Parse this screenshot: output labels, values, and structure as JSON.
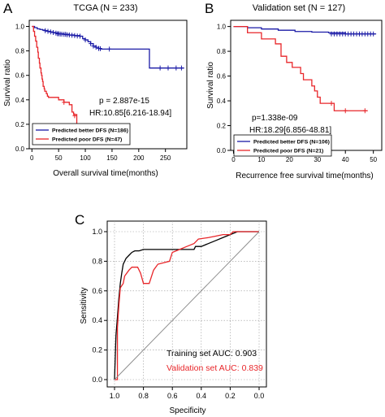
{
  "chart_data": [
    {
      "panel_label": "A",
      "type": "line",
      "title": "TCGA (N = 233)",
      "xlabel": "Overall survival time(months)",
      "ylabel": "Survival ratio",
      "xlim": [
        -5,
        290
      ],
      "ylim": [
        0,
        1.05
      ],
      "xticks": [
        0,
        50,
        100,
        150,
        200,
        250
      ],
      "yticks": [
        0.0,
        0.2,
        0.4,
        0.6,
        0.8,
        1.0
      ],
      "annotations": [
        "p = 2.887e-15",
        "HR:10.85[6.216-18.94]"
      ],
      "legend": {
        "position": "bottom-left"
      },
      "series": [
        {
          "name": "Predicted better DFS (N=186)",
          "color": "#1a1aa6",
          "steps": [
            [
              0,
              1.0
            ],
            [
              5,
              0.99
            ],
            [
              10,
              0.98
            ],
            [
              15,
              0.975
            ],
            [
              20,
              0.97
            ],
            [
              25,
              0.965
            ],
            [
              30,
              0.96
            ],
            [
              35,
              0.955
            ],
            [
              40,
              0.95
            ],
            [
              45,
              0.945
            ],
            [
              50,
              0.94
            ],
            [
              60,
              0.935
            ],
            [
              70,
              0.93
            ],
            [
              80,
              0.925
            ],
            [
              90,
              0.92
            ],
            [
              95,
              0.9
            ],
            [
              100,
              0.89
            ],
            [
              105,
              0.875
            ],
            [
              110,
              0.86
            ],
            [
              115,
              0.84
            ],
            [
              120,
              0.83
            ],
            [
              125,
              0.82
            ],
            [
              130,
              0.815
            ],
            [
              220,
              0.815
            ],
            [
              220,
              0.66
            ],
            [
              285,
              0.66
            ]
          ],
          "censors": [
            [
              25,
              0.965
            ],
            [
              30,
              0.96
            ],
            [
              35,
              0.955
            ],
            [
              40,
              0.95
            ],
            [
              45,
              0.945
            ],
            [
              48,
              0.94
            ],
            [
              50,
              0.94
            ],
            [
              53,
              0.938
            ],
            [
              56,
              0.937
            ],
            [
              60,
              0.935
            ],
            [
              63,
              0.935
            ],
            [
              66,
              0.932
            ],
            [
              70,
              0.93
            ],
            [
              75,
              0.928
            ],
            [
              80,
              0.925
            ],
            [
              85,
              0.922
            ],
            [
              90,
              0.92
            ],
            [
              100,
              0.89
            ],
            [
              110,
              0.86
            ],
            [
              115,
              0.84
            ],
            [
              120,
              0.83
            ],
            [
              125,
              0.82
            ],
            [
              128,
              0.818
            ],
            [
              145,
              0.815
            ],
            [
              240,
              0.66
            ],
            [
              255,
              0.66
            ],
            [
              270,
              0.66
            ],
            [
              280,
              0.66
            ]
          ]
        },
        {
          "name": "Predicted poor DFS (N=47)",
          "color": "#e8262a",
          "steps": [
            [
              0,
              1.0
            ],
            [
              3,
              0.96
            ],
            [
              5,
              0.92
            ],
            [
              7,
              0.88
            ],
            [
              9,
              0.83
            ],
            [
              11,
              0.79
            ],
            [
              12,
              0.74
            ],
            [
              14,
              0.7
            ],
            [
              15,
              0.66
            ],
            [
              17,
              0.62
            ],
            [
              18,
              0.6
            ],
            [
              19,
              0.57
            ],
            [
              20,
              0.55
            ],
            [
              21,
              0.51
            ],
            [
              23,
              0.49
            ],
            [
              24,
              0.47
            ],
            [
              27,
              0.45
            ],
            [
              29,
              0.43
            ],
            [
              31,
              0.42
            ],
            [
              40,
              0.42
            ],
            [
              50,
              0.4
            ],
            [
              60,
              0.38
            ],
            [
              70,
              0.36
            ],
            [
              75,
              0.3
            ],
            [
              78,
              0.28
            ],
            [
              84,
              0.2
            ],
            [
              92,
              0.16
            ],
            [
              110,
              0.16
            ]
          ],
          "censors": [
            [
              60,
              0.38
            ],
            [
              80,
              0.27
            ],
            [
              95,
              0.16
            ],
            [
              100,
              0.16
            ],
            [
              108,
              0.16
            ]
          ]
        }
      ]
    },
    {
      "panel_label": "B",
      "type": "line",
      "title": "Validation set (N = 127)",
      "xlabel": "Recurrence free survival time(months)",
      "ylabel": "Survival ratio",
      "xlim": [
        -1,
        53
      ],
      "ylim": [
        0,
        1.05
      ],
      "xticks": [
        0,
        10,
        20,
        30,
        40,
        50
      ],
      "yticks": [
        0.0,
        0.2,
        0.4,
        0.6,
        0.8,
        1.0
      ],
      "annotations": [
        "p=1.338e-09",
        "HR:18.29[6.856-48.81]"
      ],
      "legend": {
        "position": "bottom-left"
      },
      "series": [
        {
          "name": "Predicted better DFS (N=106)",
          "color": "#1a1aa6",
          "steps": [
            [
              0,
              1.0
            ],
            [
              5,
              0.99
            ],
            [
              10,
              0.98
            ],
            [
              16,
              0.97
            ],
            [
              22,
              0.96
            ],
            [
              28,
              0.955
            ],
            [
              34,
              0.95
            ],
            [
              40,
              0.94
            ],
            [
              51,
              0.94
            ]
          ],
          "censors": [
            [
              35,
              0.94
            ],
            [
              36,
              0.94
            ],
            [
              37,
              0.94
            ],
            [
              38,
              0.94
            ],
            [
              39,
              0.94
            ],
            [
              40,
              0.94
            ],
            [
              41,
              0.94
            ],
            [
              42,
              0.94
            ],
            [
              43,
              0.94
            ],
            [
              44,
              0.94
            ],
            [
              45,
              0.94
            ],
            [
              46,
              0.94
            ],
            [
              47,
              0.94
            ],
            [
              48,
              0.94
            ],
            [
              49,
              0.94
            ],
            [
              50,
              0.94
            ]
          ]
        },
        {
          "name": "Predicted poor DFS (N=21)",
          "color": "#e8262a",
          "steps": [
            [
              0,
              1.0
            ],
            [
              5,
              1.0
            ],
            [
              5,
              0.95
            ],
            [
              10,
              0.95
            ],
            [
              10,
              0.9
            ],
            [
              15,
              0.9
            ],
            [
              15,
              0.86
            ],
            [
              17,
              0.86
            ],
            [
              17,
              0.76
            ],
            [
              19,
              0.76
            ],
            [
              19,
              0.71
            ],
            [
              21,
              0.71
            ],
            [
              21,
              0.67
            ],
            [
              24,
              0.67
            ],
            [
              24,
              0.62
            ],
            [
              25,
              0.62
            ],
            [
              25,
              0.57
            ],
            [
              28,
              0.57
            ],
            [
              28,
              0.52
            ],
            [
              29,
              0.52
            ],
            [
              29,
              0.48
            ],
            [
              30,
              0.48
            ],
            [
              30,
              0.43
            ],
            [
              31,
              0.43
            ],
            [
              31,
              0.38
            ],
            [
              36,
              0.38
            ],
            [
              36,
              0.32
            ],
            [
              48,
              0.32
            ]
          ],
          "censors": [
            [
              35,
              0.38
            ],
            [
              40,
              0.32
            ],
            [
              47,
              0.32
            ]
          ]
        }
      ]
    },
    {
      "panel_label": "C",
      "type": "line",
      "title": "",
      "xlabel": "Specificity",
      "ylabel": "Sensitivity",
      "xlim": [
        1.0,
        0.0
      ],
      "ylim": [
        0.0,
        1.0
      ],
      "xticks": [
        1.0,
        0.8,
        0.6,
        0.4,
        0.2,
        0.0
      ],
      "xtick_labels": [
        "1.0",
        "0.8",
        "0.6",
        "0.4",
        "0.2",
        "0.0"
      ],
      "yticks": [
        0.0,
        0.2,
        0.4,
        0.6,
        0.8,
        1.0
      ],
      "grid": true,
      "annotations": [
        "Training set AUC: 0.903",
        "Validation set AUC: 0.839"
      ],
      "series": [
        {
          "name": "Training set",
          "color": "#000000",
          "points": [
            [
              1.0,
              0.0
            ],
            [
              0.99,
              0.3
            ],
            [
              0.98,
              0.42
            ],
            [
              0.97,
              0.55
            ],
            [
              0.96,
              0.65
            ],
            [
              0.95,
              0.72
            ],
            [
              0.94,
              0.78
            ],
            [
              0.92,
              0.82
            ],
            [
              0.9,
              0.84
            ],
            [
              0.88,
              0.86
            ],
            [
              0.86,
              0.87
            ],
            [
              0.83,
              0.87
            ],
            [
              0.8,
              0.88
            ],
            [
              0.75,
              0.88
            ],
            [
              0.7,
              0.88
            ],
            [
              0.55,
              0.88
            ],
            [
              0.45,
              0.88
            ],
            [
              0.44,
              0.9
            ],
            [
              0.4,
              0.9
            ],
            [
              0.35,
              0.92
            ],
            [
              0.3,
              0.94
            ],
            [
              0.25,
              0.96
            ],
            [
              0.2,
              0.98
            ],
            [
              0.15,
              1.0
            ],
            [
              0.0,
              1.0
            ]
          ]
        },
        {
          "name": "Validation set",
          "color": "#e8262a",
          "points": [
            [
              1.0,
              0.0
            ],
            [
              0.98,
              0.0
            ],
            [
              0.98,
              0.35
            ],
            [
              0.97,
              0.5
            ],
            [
              0.96,
              0.62
            ],
            [
              0.94,
              0.65
            ],
            [
              0.93,
              0.7
            ],
            [
              0.9,
              0.74
            ],
            [
              0.88,
              0.76
            ],
            [
              0.84,
              0.76
            ],
            [
              0.82,
              0.72
            ],
            [
              0.8,
              0.65
            ],
            [
              0.76,
              0.65
            ],
            [
              0.73,
              0.74
            ],
            [
              0.7,
              0.78
            ],
            [
              0.62,
              0.8
            ],
            [
              0.6,
              0.86
            ],
            [
              0.55,
              0.88
            ],
            [
              0.5,
              0.9
            ],
            [
              0.45,
              0.92
            ],
            [
              0.42,
              0.95
            ],
            [
              0.35,
              0.96
            ],
            [
              0.3,
              0.97
            ],
            [
              0.25,
              0.98
            ],
            [
              0.2,
              0.98
            ],
            [
              0.18,
              1.0
            ],
            [
              0.0,
              1.0
            ]
          ]
        },
        {
          "name": "Reference",
          "color": "#888888",
          "points": [
            [
              1.0,
              0.0
            ],
            [
              0.0,
              1.0
            ]
          ]
        }
      ]
    }
  ]
}
